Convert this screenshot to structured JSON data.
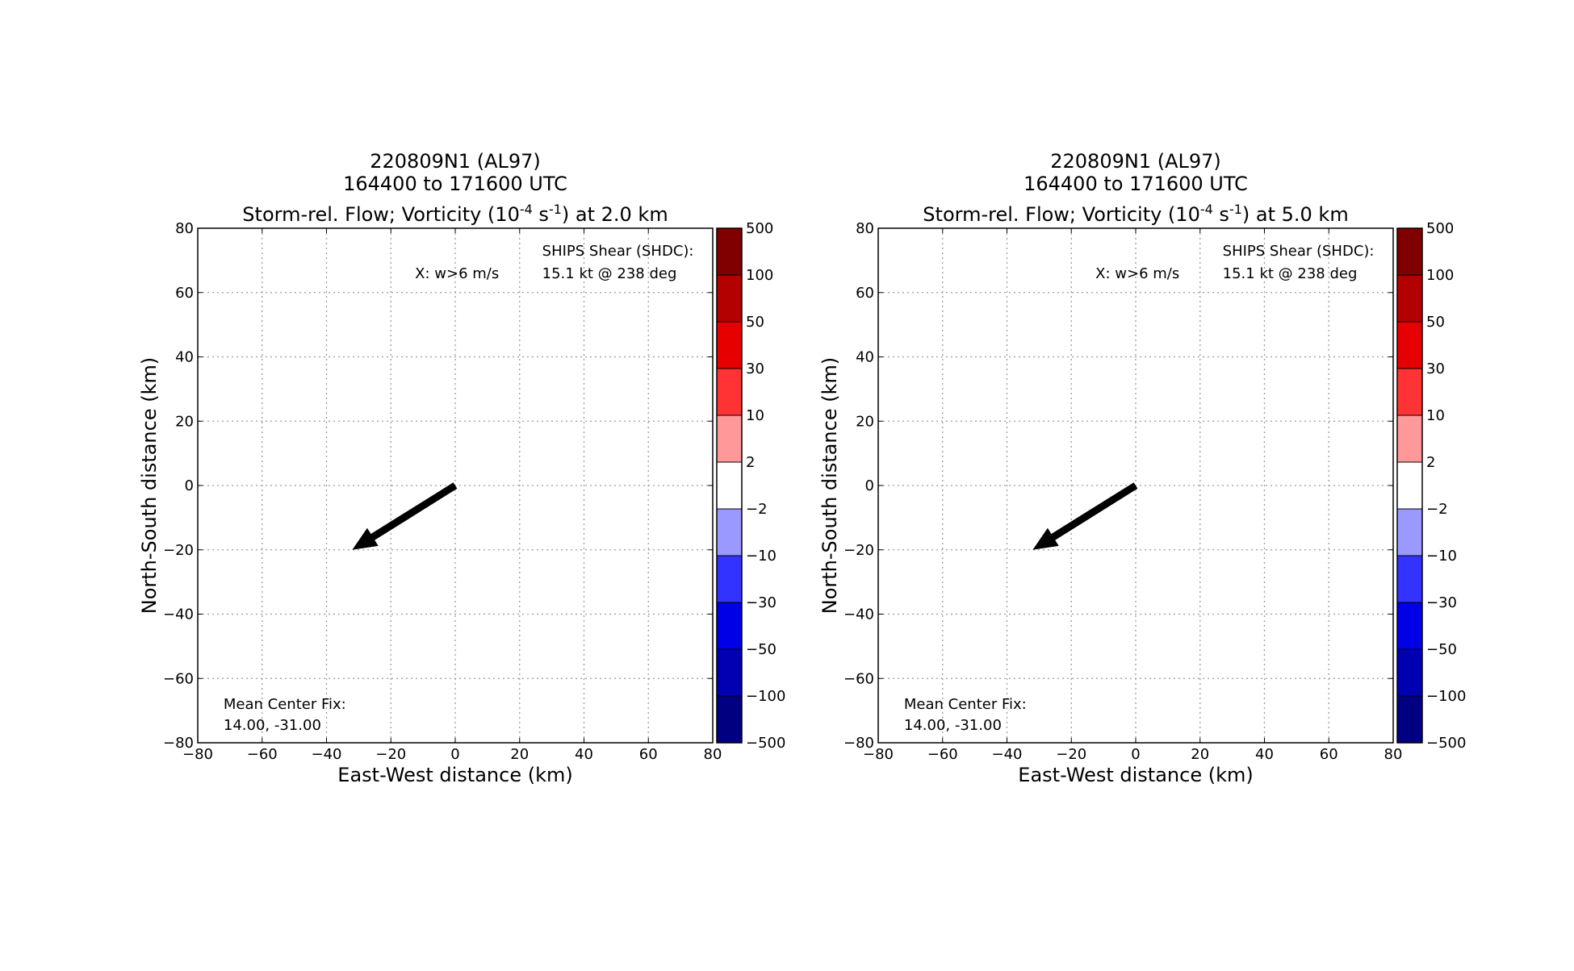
{
  "chart_data": [
    {
      "type": "quiver",
      "title_line1": "220809N1 (AL97)",
      "title_line2": "164400 to 171600 UTC",
      "title_line3_prefix": "Storm-rel. Flow; Vorticity (10",
      "title_line3_exp1": "-4",
      "title_line3_mid": " s",
      "title_line3_exp2": "-1",
      "title_line3_suffix": ") at 2.0 km",
      "xlabel": "East-West distance (km)",
      "ylabel": "North-South distance (km)",
      "xlim": [
        -80,
        80
      ],
      "ylim": [
        -80,
        80
      ],
      "xticks": [
        -80,
        -60,
        -40,
        -20,
        0,
        20,
        40,
        60,
        80
      ],
      "yticks": [
        -80,
        -60,
        -40,
        -20,
        0,
        20,
        40,
        60,
        80
      ],
      "grid": true,
      "annotation_w": "X: w>6 m/s",
      "ships_line1": "SHIPS Shear (SHDC):",
      "ships_line2": "15.1 kt @ 238 deg",
      "center_line1": "Mean Center Fix:",
      "center_line2": "14.00, -31.00",
      "arrow": {
        "x0": 0,
        "y0": 0,
        "x1": -32,
        "y1": -20
      },
      "colorbar": {
        "levels": [
          "500",
          "100",
          "50",
          "30",
          "10",
          "2",
          "−2",
          "−10",
          "−30",
          "−50",
          "−100",
          "−500"
        ],
        "colors": [
          "#800000",
          "#b30000",
          "#e60000",
          "#ff3333",
          "#ff9999",
          "#ffffff",
          "#9999ff",
          "#3333ff",
          "#0000e6",
          "#0000b3",
          "#000080"
        ]
      }
    },
    {
      "type": "quiver",
      "title_line1": "220809N1 (AL97)",
      "title_line2": "164400 to 171600 UTC",
      "title_line3_prefix": "Storm-rel. Flow; Vorticity (10",
      "title_line3_exp1": "-4",
      "title_line3_mid": " s",
      "title_line3_exp2": "-1",
      "title_line3_suffix": ") at 5.0 km",
      "xlabel": "East-West distance (km)",
      "ylabel": "North-South distance (km)",
      "xlim": [
        -80,
        80
      ],
      "ylim": [
        -80,
        80
      ],
      "xticks": [
        -80,
        -60,
        -40,
        -20,
        0,
        20,
        40,
        60,
        80
      ],
      "yticks": [
        -80,
        -60,
        -40,
        -20,
        0,
        20,
        40,
        60,
        80
      ],
      "grid": true,
      "annotation_w": "X: w>6 m/s",
      "ships_line1": "SHIPS Shear (SHDC):",
      "ships_line2": "15.1 kt @ 238 deg",
      "center_line1": "Mean Center Fix:",
      "center_line2": "14.00, -31.00",
      "arrow": {
        "x0": 0,
        "y0": 0,
        "x1": -32,
        "y1": -20
      },
      "colorbar": {
        "levels": [
          "500",
          "100",
          "50",
          "30",
          "10",
          "2",
          "−2",
          "−10",
          "−30",
          "−50",
          "−100",
          "−500"
        ],
        "colors": [
          "#800000",
          "#b30000",
          "#e60000",
          "#ff3333",
          "#ff9999",
          "#ffffff",
          "#9999ff",
          "#3333ff",
          "#0000e6",
          "#0000b3",
          "#000080"
        ]
      }
    }
  ]
}
